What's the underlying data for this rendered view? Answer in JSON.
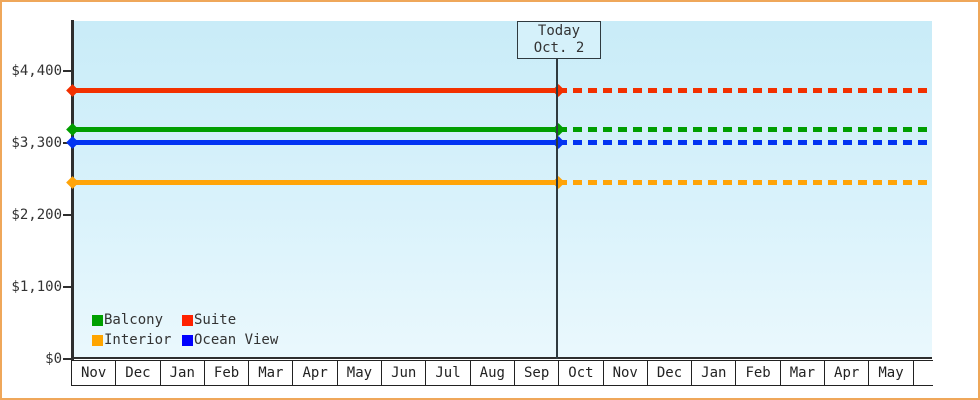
{
  "window": {
    "border_color": "#EFA75A",
    "plot_bg_top": "#C9ECF8",
    "plot_bg_bottom": "#EAF8FD",
    "axis_color": "#2E2E2E"
  },
  "annotation": {
    "line1": "Today",
    "line2": "Oct. 2"
  },
  "chart_data": {
    "type": "line",
    "title": "",
    "xlabel": "",
    "ylabel": "",
    "categories": [
      "Nov",
      "Dec",
      "Jan",
      "Feb",
      "Mar",
      "Apr",
      "May",
      "Jun",
      "Jul",
      "Aug",
      "Sep",
      "Oct",
      "Nov",
      "Dec",
      "Jan",
      "Feb",
      "Mar",
      "Apr",
      "May"
    ],
    "today_boundary_index": 11,
    "today_label": "Today Oct. 2",
    "series": [
      {
        "name": "Suite",
        "value": 4100,
        "color": "#F23000"
      },
      {
        "name": "Balcony",
        "value": 3500,
        "color": "#009E00"
      },
      {
        "name": "Ocean View",
        "value": 3300,
        "color": "#0334F2"
      },
      {
        "name": "Interior",
        "value": 2700,
        "color": "#FFA408"
      }
    ],
    "line_style_before_today": "solid",
    "line_style_after_today": "dashed",
    "marker": "diamond",
    "y_axis": {
      "ticks": [
        {
          "value": 0,
          "label": "$0"
        },
        {
          "value": 1100,
          "label": "$1,100"
        },
        {
          "value": 2200,
          "label": "$2,200"
        },
        {
          "value": 3300,
          "label": "$3,300"
        },
        {
          "value": 4400,
          "label": "$4,400"
        }
      ],
      "ylim": [
        0,
        5150
      ]
    },
    "grid": "off",
    "legend_position": "bottom-left"
  },
  "legend": {
    "items": [
      {
        "label": "Balcony",
        "color": "#00A000"
      },
      {
        "label": "Suite",
        "color": "#FF2200"
      },
      {
        "label": "Interior",
        "color": "#FFA500"
      },
      {
        "label": "Ocean View",
        "color": "#0000FF"
      }
    ]
  }
}
